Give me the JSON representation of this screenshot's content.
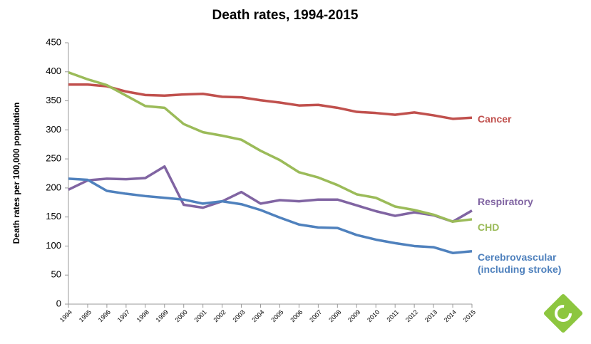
{
  "chart_data": {
    "type": "line",
    "title": "Death rates, 1994-2015",
    "y_label": "Death rates per 100,000 population",
    "categories": [
      "1994",
      "1995",
      "1996",
      "1997",
      "1998",
      "1999",
      "2000",
      "2001",
      "2002",
      "2003",
      "2004",
      "2005",
      "2006",
      "2007",
      "2008",
      "2009",
      "2010",
      "2011",
      "2012",
      "2013",
      "2014",
      "2015"
    ],
    "ylim": [
      0,
      450
    ],
    "yticks": [
      0,
      50,
      100,
      150,
      200,
      250,
      300,
      350,
      400,
      450
    ],
    "grid": false,
    "series": [
      {
        "name": "Cancer",
        "color": "#c0504d",
        "values": [
          378,
          378,
          375,
          366,
          360,
          359,
          361,
          362,
          357,
          356,
          351,
          347,
          342,
          343,
          338,
          331,
          329,
          326,
          330,
          325,
          319,
          321
        ]
      },
      {
        "name": "Respiratory",
        "color": "#8064a2",
        "values": [
          197,
          213,
          216,
          215,
          217,
          237,
          171,
          166,
          177,
          193,
          173,
          179,
          177,
          180,
          180,
          170,
          160,
          152,
          158,
          153,
          142,
          161
        ]
      },
      {
        "name": "CHD",
        "color": "#9bbb59",
        "values": [
          399,
          387,
          377,
          359,
          341,
          338,
          310,
          296,
          290,
          283,
          264,
          248,
          227,
          218,
          205,
          189,
          183,
          168,
          162,
          154,
          142,
          146
        ]
      },
      {
        "name": "Cerebrovascular (including stroke)",
        "color": "#4f81bd",
        "values": [
          216,
          214,
          195,
          190,
          186,
          183,
          180,
          173,
          177,
          172,
          162,
          149,
          137,
          132,
          131,
          119,
          111,
          105,
          100,
          98,
          88,
          91
        ]
      }
    ]
  }
}
